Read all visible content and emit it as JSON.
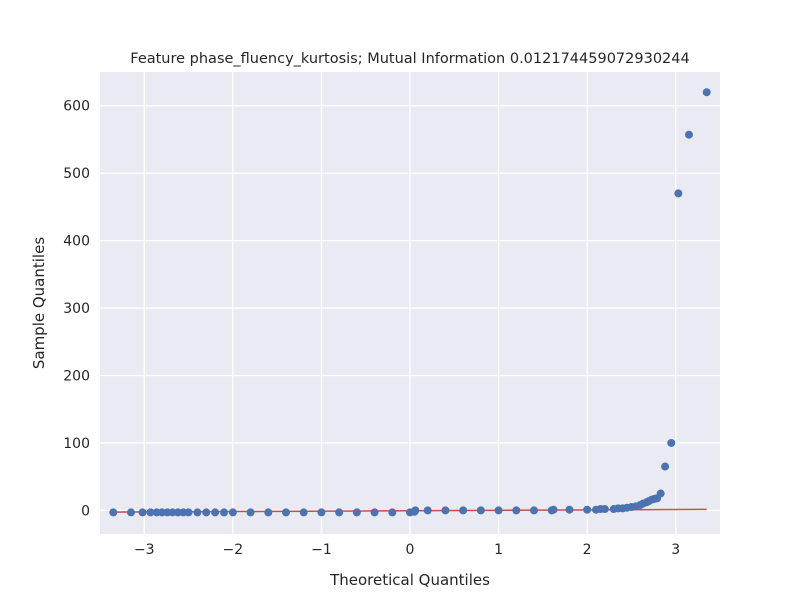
{
  "chart_data": {
    "type": "scatter",
    "title": "Feature phase_fluency_kurtosis; Mutual Information 0.012174459072930244",
    "xlabel": "Theoretical Quantiles",
    "ylabel": "Sample Quantiles",
    "xlim": [
      -3.5,
      3.5
    ],
    "ylim": [
      -35,
      650
    ],
    "grid": true,
    "xticks": [
      -3,
      -2,
      -1,
      0,
      1,
      2,
      3
    ],
    "xtick_labels": [
      "−3",
      "−2",
      "−1",
      "0",
      "1",
      "2",
      "3"
    ],
    "yticks": [
      0,
      100,
      200,
      300,
      400,
      500,
      600
    ],
    "ytick_labels": [
      "0",
      "100",
      "200",
      "300",
      "400",
      "500",
      "600"
    ],
    "reference_line": {
      "x": [
        -3.35,
        3.35
      ],
      "y": [
        -2.5,
        1.5
      ],
      "color": "#c44e52"
    },
    "series": [
      {
        "marker_color": "#4c72b0",
        "x": [
          -3.35,
          -3.15,
          -3.02,
          -2.93,
          -2.86,
          -2.8,
          -2.74,
          -2.68,
          -2.62,
          -2.56,
          -2.5,
          -2.4,
          -2.3,
          -2.2,
          -2.1,
          -2.0,
          -1.8,
          -1.6,
          -1.4,
          -1.2,
          -1.0,
          -0.8,
          -0.6,
          -0.4,
          -0.2,
          0.0,
          0.05,
          0.06,
          0.2,
          0.4,
          0.6,
          0.8,
          1.0,
          1.2,
          1.4,
          1.6,
          1.62,
          1.8,
          2.0,
          2.1,
          2.15,
          2.2,
          2.3,
          2.35,
          2.4,
          2.45,
          2.5,
          2.55,
          2.6,
          2.63,
          2.67,
          2.7,
          2.73,
          2.76,
          2.79,
          2.83,
          2.88,
          2.95,
          3.03,
          3.15,
          3.35
        ],
        "y": [
          -3,
          -3,
          -3,
          -3,
          -3,
          -3,
          -3,
          -3,
          -3,
          -3,
          -3,
          -3,
          -3,
          -3,
          -3,
          -3,
          -3,
          -3,
          -3,
          -3,
          -3,
          -3,
          -3,
          -3,
          -3,
          -3,
          -2,
          0,
          0,
          0,
          0,
          0,
          0,
          0,
          0,
          0,
          1,
          1,
          1,
          1,
          2,
          2,
          2,
          3,
          3,
          4,
          5,
          6,
          8,
          10,
          12,
          14,
          16,
          17,
          18,
          25,
          65,
          100,
          470,
          557,
          620
        ]
      }
    ]
  }
}
